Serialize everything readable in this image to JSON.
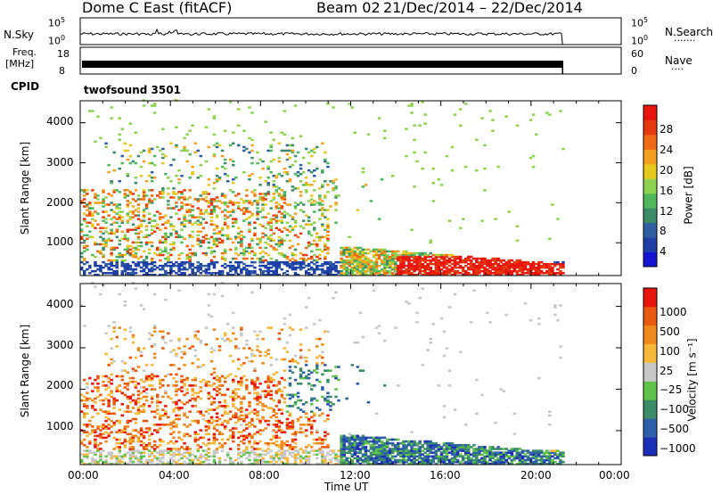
{
  "header": {
    "radar": "Dome C East (fitACF)",
    "beam": "Beam 02",
    "dates": "21/Dec/2014 – 22/Dec/2014"
  },
  "strip": {
    "nsky_label": "N.Sky",
    "nsky_ticks": [
      "10^5",
      "10^0"
    ],
    "nsearch_label": "N.Search",
    "nsearch_ticks": [
      "10^5",
      "10^0"
    ],
    "freq_label": "Freq.",
    "freq_unit": "[MHz]",
    "freq_ticks": [
      "18",
      "8"
    ],
    "nave_label": "Nave",
    "nave_ticks": [
      "60",
      "0"
    ],
    "cpid_label": "CPID",
    "cpid_value": "twofsound 3501",
    "line_color": "#000000"
  },
  "chart_data": [
    {
      "type": "heatmap",
      "name": "power",
      "ylabel": "Slant Range [km]",
      "xlabel": "Time UT",
      "yticks": [
        "1000",
        "2000",
        "3000",
        "4000"
      ],
      "ylim": [
        180,
        4550
      ],
      "xlim": [
        0,
        24
      ],
      "xticks": [
        "00:00",
        "04:00",
        "08:00",
        "12:00",
        "16:00",
        "20:00",
        "00:00"
      ],
      "colorbar": {
        "label": "Power [dB]",
        "ticks": [
          "28",
          "24",
          "20",
          "16",
          "12",
          "8",
          "4"
        ],
        "colors": [
          "#1414d2",
          "#1f3fa8",
          "#2f5fa0",
          "#3c8c6a",
          "#4fb85c",
          "#8fd24f",
          "#e6c91f",
          "#f5a020",
          "#ef6a14",
          "#e53a10",
          "#e8140e"
        ]
      },
      "data_end_hour": 21.4
    },
    {
      "type": "heatmap",
      "name": "velocity",
      "ylabel": "Slant Range [km]",
      "xlabel": "Time UT",
      "yticks": [
        "1000",
        "2000",
        "3000",
        "4000"
      ],
      "ylim": [
        180,
        4550
      ],
      "xlim": [
        0,
        24
      ],
      "xticks": [
        "00:00",
        "04:00",
        "08:00",
        "12:00",
        "16:00",
        "20:00",
        "00:00"
      ],
      "colorbar": {
        "label": "Velocity [m s⁻¹]",
        "ticks": [
          "1000",
          "500",
          "100",
          "25",
          "−25",
          "−100",
          "−500",
          "−1000"
        ],
        "colors": [
          "#1c2fb8",
          "#2f5fa8",
          "#3c8c6a",
          "#5fc24a",
          "#c8c8c8",
          "#f5b83a",
          "#ef8a1e",
          "#e85a12",
          "#e8140e"
        ]
      },
      "data_end_hour": 21.4
    }
  ]
}
